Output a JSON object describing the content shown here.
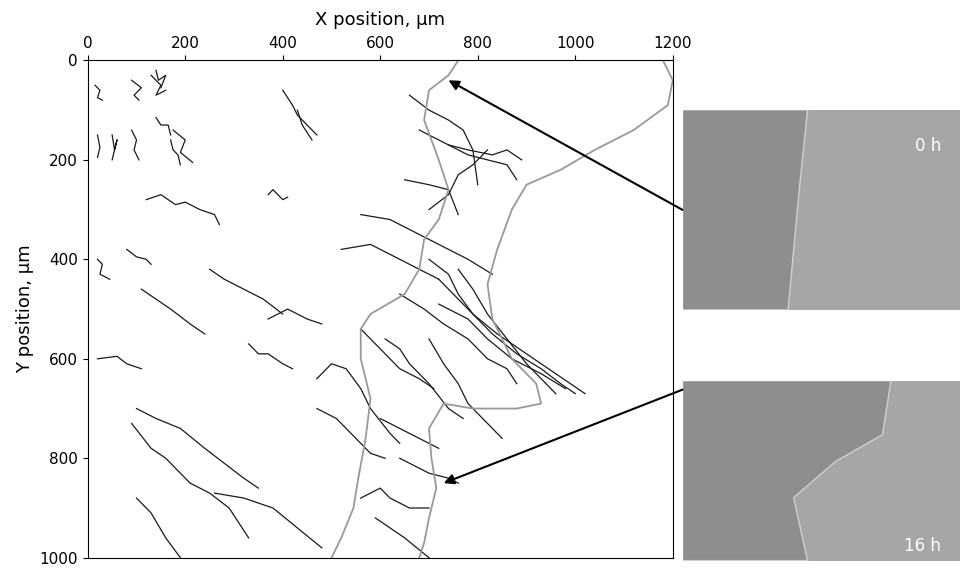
{
  "chart_data": {
    "type": "line",
    "x_label": "X position, µm",
    "y_label": "Y position, µm",
    "xlim": [
      0,
      1200
    ],
    "ylim": [
      1000,
      0
    ],
    "xticks": [
      0,
      200,
      400,
      600,
      800,
      1000,
      1200
    ],
    "yticks": [
      0,
      200,
      400,
      600,
      800,
      1000
    ],
    "grid": false,
    "color": "#1a1a1a",
    "tracks": [
      {
        "x": [
          15,
          25,
          20,
          30
        ],
        "y": [
          50,
          60,
          75,
          80
        ]
      },
      {
        "x": [
          90,
          110,
          95,
          105
        ],
        "y": [
          40,
          55,
          70,
          80
        ]
      },
      {
        "x": [
          130,
          150,
          140,
          160
        ],
        "y": [
          30,
          50,
          70,
          60
        ]
      },
      {
        "x": [
          140,
          145,
          160,
          150
        ],
        "y": [
          20,
          40,
          30,
          55
        ]
      },
      {
        "x": [
          20,
          25,
          20
        ],
        "y": [
          150,
          175,
          195
        ]
      },
      {
        "x": [
          50,
          55,
          60,
          50
        ],
        "y": [
          150,
          180,
          160,
          200
        ]
      },
      {
        "x": [
          90,
          100,
          95,
          105
        ],
        "y": [
          140,
          160,
          180,
          200
        ]
      },
      {
        "x": [
          140,
          150,
          165,
          170
        ],
        "y": [
          115,
          130,
          130,
          150
        ]
      },
      {
        "x": [
          170,
          175,
          185,
          190
        ],
        "y": [
          160,
          180,
          190,
          210
        ]
      },
      {
        "x": [
          175,
          200,
          190,
          215
        ],
        "y": [
          140,
          160,
          185,
          205
        ]
      },
      {
        "x": [
          20,
          30,
          25,
          45
        ],
        "y": [
          400,
          410,
          430,
          440
        ]
      },
      {
        "x": [
          80,
          100,
          120,
          130
        ],
        "y": [
          380,
          395,
          400,
          410
        ]
      },
      {
        "x": [
          120,
          150,
          180,
          200,
          230,
          260,
          270
        ],
        "y": [
          280,
          270,
          290,
          285,
          300,
          310,
          330
        ]
      },
      {
        "x": [
          370,
          380,
          400,
          410
        ],
        "y": [
          270,
          260,
          280,
          275
        ]
      },
      {
        "x": [
          400,
          420,
          430,
          450,
          470
        ],
        "y": [
          60,
          90,
          110,
          130,
          150
        ]
      },
      {
        "x": [
          430,
          440,
          460
        ],
        "y": [
          100,
          130,
          160
        ]
      },
      {
        "x": [
          20,
          60,
          80,
          110
        ],
        "y": [
          600,
          595,
          610,
          620
        ]
      },
      {
        "x": [
          110,
          140,
          170,
          210,
          240
        ],
        "y": [
          460,
          480,
          500,
          530,
          550
        ]
      },
      {
        "x": [
          250,
          280,
          320,
          360,
          400
        ],
        "y": [
          420,
          440,
          460,
          480,
          510
        ]
      },
      {
        "x": [
          370,
          410,
          450,
          480
        ],
        "y": [
          520,
          500,
          520,
          530
        ]
      },
      {
        "x": [
          330,
          350,
          370,
          400,
          420
        ],
        "y": [
          570,
          590,
          590,
          610,
          620
        ]
      },
      {
        "x": [
          100,
          140,
          190,
          240,
          280,
          320,
          350
        ],
        "y": [
          700,
          720,
          740,
          780,
          810,
          840,
          860
        ]
      },
      {
        "x": [
          90,
          130,
          160,
          210,
          250,
          290,
          330
        ],
        "y": [
          730,
          780,
          800,
          850,
          870,
          900,
          960
        ]
      },
      {
        "x": [
          100,
          130,
          160,
          190
        ],
        "y": [
          880,
          910,
          960,
          1000
        ]
      },
      {
        "x": [
          260,
          320,
          380,
          430,
          480
        ],
        "y": [
          870,
          880,
          900,
          940,
          980
        ]
      },
      {
        "x": [
          470,
          510,
          540,
          580,
          610
        ],
        "y": [
          700,
          720,
          750,
          790,
          800
        ]
      },
      {
        "x": [
          470,
          500,
          530,
          560,
          580,
          620,
          640
        ],
        "y": [
          640,
          610,
          620,
          660,
          700,
          750,
          770
        ]
      },
      {
        "x": [
          660,
          700,
          740,
          770,
          790,
          800
        ],
        "y": [
          70,
          100,
          120,
          140,
          180,
          250
        ]
      },
      {
        "x": [
          680,
          720,
          780,
          820,
          860,
          880
        ],
        "y": [
          140,
          160,
          190,
          200,
          210,
          240
        ]
      },
      {
        "x": [
          740,
          780,
          830,
          860,
          890
        ],
        "y": [
          170,
          180,
          190,
          180,
          200
        ]
      },
      {
        "x": [
          700,
          740,
          760,
          790,
          820
        ],
        "y": [
          300,
          270,
          230,
          210,
          180
        ]
      },
      {
        "x": [
          650,
          700,
          740,
          760
        ],
        "y": [
          240,
          250,
          260,
          310
        ]
      },
      {
        "x": [
          520,
          580,
          620,
          680,
          720
        ],
        "y": [
          380,
          370,
          390,
          420,
          440
        ]
      },
      {
        "x": [
          560,
          620,
          680,
          740,
          780,
          830
        ],
        "y": [
          310,
          320,
          350,
          380,
          400,
          430
        ]
      },
      {
        "x": [
          700,
          740,
          760,
          790,
          830,
          880,
          930,
          970,
          1000
        ],
        "y": [
          400,
          430,
          470,
          510,
          550,
          590,
          620,
          650,
          670
        ]
      },
      {
        "x": [
          720,
          760,
          790,
          840,
          900,
          960,
          1020
        ],
        "y": [
          440,
          480,
          510,
          550,
          590,
          630,
          670
        ]
      },
      {
        "x": [
          760,
          790,
          820,
          860,
          900,
          960
        ],
        "y": [
          420,
          460,
          510,
          560,
          610,
          670
        ]
      },
      {
        "x": [
          640,
          690,
          730,
          780,
          820,
          860,
          880
        ],
        "y": [
          470,
          500,
          530,
          560,
          600,
          620,
          650
        ]
      },
      {
        "x": [
          720,
          780,
          820,
          870,
          930,
          980
        ],
        "y": [
          490,
          520,
          560,
          600,
          630,
          660
        ]
      },
      {
        "x": [
          610,
          640,
          660,
          700,
          740,
          770
        ],
        "y": [
          560,
          580,
          610,
          650,
          700,
          720
        ]
      },
      {
        "x": [
          560,
          600,
          640,
          680,
          710
        ],
        "y": [
          540,
          580,
          620,
          640,
          660
        ]
      },
      {
        "x": [
          700,
          730,
          760,
          780,
          820,
          850
        ],
        "y": [
          560,
          610,
          650,
          690,
          730,
          760
        ]
      },
      {
        "x": [
          600,
          640,
          680,
          720
        ],
        "y": [
          720,
          740,
          760,
          780
        ]
      },
      {
        "x": [
          640,
          680,
          700,
          740,
          760
        ],
        "y": [
          800,
          820,
          830,
          840,
          850
        ]
      },
      {
        "x": [
          560,
          600,
          620,
          660,
          700
        ],
        "y": [
          880,
          860,
          880,
          900,
          900
        ]
      },
      {
        "x": [
          590,
          620,
          650,
          700
        ],
        "y": [
          920,
          940,
          960,
          1000
        ]
      }
    ],
    "panels": [
      {
        "label": "0 h",
        "boundary_color": "#999999",
        "arrow_to": [
          740,
          40
        ],
        "boundary": {
          "x": [
            760,
            740,
            700,
            690,
            720,
            740,
            720,
            690,
            680,
            650,
            580,
            560,
            560,
            580,
            570,
            555,
            545,
            520,
            500
          ],
          "y": [
            0,
            30,
            60,
            120,
            200,
            260,
            320,
            360,
            420,
            470,
            510,
            540,
            600,
            680,
            760,
            840,
            900,
            960,
            1000
          ]
        }
      },
      {
        "label": "16 h",
        "boundary_color": "#999999",
        "arrow_to": [
          730,
          850
        ],
        "boundary": {
          "x": [
            1180,
            1200,
            1190,
            1120,
            1040,
            970,
            900,
            870,
            840,
            820,
            830,
            870,
            920,
            930,
            880,
            790,
            730,
            700,
            705,
            715,
            700,
            690,
            680
          ],
          "y": [
            0,
            40,
            90,
            140,
            180,
            220,
            250,
            300,
            380,
            450,
            520,
            600,
            650,
            690,
            700,
            700,
            690,
            740,
            800,
            860,
            920,
            970,
            1000
          ]
        }
      }
    ]
  }
}
